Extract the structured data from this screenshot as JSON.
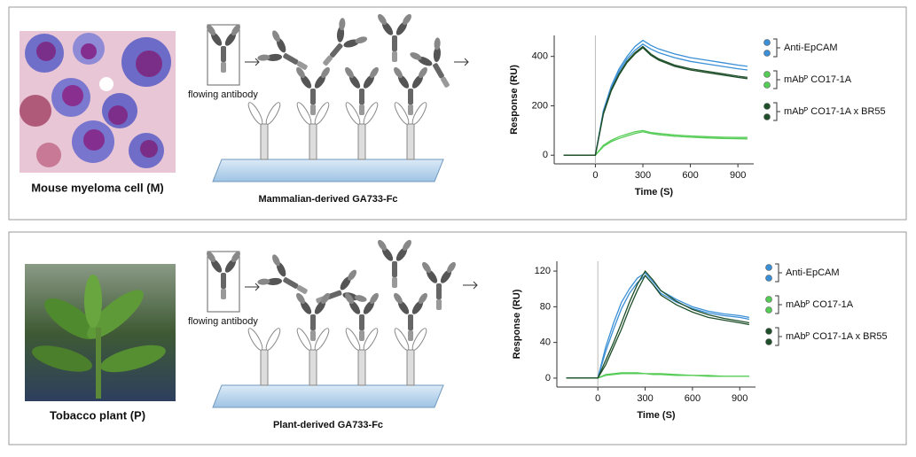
{
  "panels": [
    {
      "photo_caption": "Mouse myeloma cell (M)",
      "diagram_label": "flowing antibody",
      "substrate_caption": "Mammalian-derived GA733-Fc"
    },
    {
      "photo_caption": "Tobacco plant (P)",
      "diagram_label": "flowing antibody",
      "substrate_caption": "Plant-derived GA733-Fc"
    }
  ],
  "chart_data": [
    {
      "type": "line",
      "x_label": "Time (S)",
      "y_label": "Response (RU)",
      "x": [
        -200,
        -100,
        0,
        50,
        100,
        150,
        200,
        250,
        300,
        350,
        400,
        500,
        600,
        700,
        800,
        900,
        960
      ],
      "xlim": [
        -260,
        1000
      ],
      "xticks": [
        0,
        300,
        600,
        900
      ],
      "ylim": [
        -35,
        485
      ],
      "yticks": [
        0,
        200,
        400
      ],
      "series": [
        {
          "name": "Anti-EpCAM",
          "color": "#3a8fd6",
          "values": [
            0,
            0,
            0,
            180,
            280,
            350,
            400,
            440,
            465,
            445,
            430,
            410,
            395,
            385,
            375,
            365,
            360
          ],
          "replicate_values": [
            0,
            0,
            0,
            170,
            270,
            340,
            390,
            425,
            450,
            430,
            415,
            395,
            380,
            370,
            360,
            350,
            345
          ]
        },
        {
          "name": "mAbᴾ CO17-1A",
          "color": "#55cc55",
          "values": [
            0,
            0,
            0,
            40,
            60,
            75,
            85,
            95,
            100,
            92,
            88,
            82,
            78,
            75,
            73,
            72,
            72
          ],
          "replicate_values": [
            0,
            0,
            0,
            35,
            55,
            68,
            78,
            88,
            95,
            88,
            83,
            77,
            73,
            70,
            68,
            67,
            66
          ]
        },
        {
          "name": "mAbᴾ CO17-1A x BR55",
          "color": "#1f4f2a",
          "values": [
            0,
            0,
            0,
            170,
            265,
            330,
            380,
            415,
            440,
            410,
            390,
            365,
            350,
            340,
            330,
            320,
            315
          ],
          "replicate_values": [
            0,
            0,
            0,
            165,
            260,
            325,
            375,
            410,
            435,
            405,
            385,
            360,
            345,
            335,
            325,
            315,
            310
          ]
        }
      ]
    },
    {
      "type": "line",
      "x_label": "Time (S)",
      "y_label": "Response (RU)",
      "x": [
        -200,
        -100,
        0,
        50,
        100,
        150,
        200,
        250,
        300,
        350,
        400,
        500,
        600,
        700,
        800,
        900,
        960
      ],
      "xlim": [
        -260,
        1000
      ],
      "xticks": [
        0,
        300,
        600,
        900
      ],
      "ylim": [
        -10,
        131
      ],
      "yticks": [
        0,
        40,
        80,
        120
      ],
      "series": [
        {
          "name": "Anti-EpCAM",
          "color": "#3a8fd6",
          "values": [
            0,
            0,
            0,
            35,
            62,
            85,
            100,
            112,
            118,
            108,
            98,
            88,
            80,
            75,
            72,
            70,
            68
          ],
          "replicate_values": [
            0,
            0,
            0,
            30,
            55,
            78,
            95,
            107,
            115,
            105,
            95,
            85,
            78,
            73,
            70,
            68,
            66
          ]
        },
        {
          "name": "mAbᴾ CO17-1A",
          "color": "#55cc55",
          "values": [
            0,
            0,
            0,
            4,
            5,
            6,
            6,
            6,
            5,
            5,
            5,
            4,
            3,
            3,
            2,
            2,
            2
          ],
          "replicate_values": [
            0,
            0,
            0,
            3,
            4,
            5,
            5,
            5,
            5,
            4,
            4,
            3,
            3,
            2,
            2,
            2,
            2
          ]
        },
        {
          "name": "mAbᴾ CO17-1A x BR55",
          "color": "#1f4f2a",
          "values": [
            0,
            0,
            0,
            20,
            40,
            62,
            85,
            105,
            120,
            110,
            98,
            86,
            77,
            71,
            67,
            64,
            62
          ],
          "replicate_values": [
            0,
            0,
            0,
            15,
            35,
            55,
            78,
            98,
            115,
            105,
            93,
            82,
            74,
            68,
            65,
            62,
            60
          ]
        }
      ]
    }
  ]
}
